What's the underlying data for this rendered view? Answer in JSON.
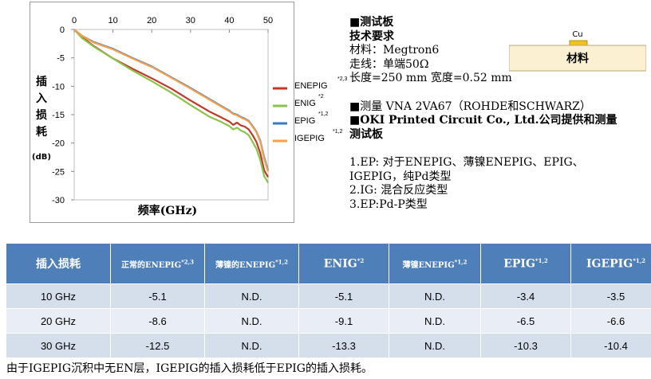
{
  "chart_data": {
    "type": "line",
    "xlabel": "频率(GHz)",
    "ylabel_chars": [
      "插",
      "入",
      "损",
      "耗"
    ],
    "ylabel_unit": "(dB)",
    "xlim": [
      0,
      50
    ],
    "ylim": [
      -30,
      0
    ],
    "x_ticks": [
      "0",
      "10",
      "20",
      "30",
      "40",
      "50"
    ],
    "y_ticks": [
      "0",
      "-5",
      "-10",
      "-15",
      "-20",
      "-25",
      "-30"
    ],
    "series": [
      {
        "name": "ENEPIG",
        "sup": "*2,3",
        "color": "#c0392b",
        "x": [
          0,
          2,
          5,
          10,
          15,
          20,
          25,
          30,
          35,
          38,
          40,
          41,
          42,
          43,
          44,
          45,
          46,
          47,
          48,
          49,
          50
        ],
        "y": [
          0,
          -1.3,
          -2.9,
          -5.1,
          -6.9,
          -8.6,
          -10.4,
          -12.5,
          -14.5,
          -15.5,
          -16.2,
          -16.8,
          -16.4,
          -16.9,
          -17.1,
          -17.6,
          -18.6,
          -19.8,
          -21.8,
          -24.8,
          -26
        ]
      },
      {
        "name": "ENIG",
        "sup": "*2",
        "color": "#8bc34a",
        "x": [
          0,
          2,
          5,
          10,
          15,
          20,
          25,
          30,
          35,
          38,
          40,
          41,
          42,
          43,
          44,
          45,
          46,
          47,
          48,
          49,
          50
        ],
        "y": [
          0,
          -1.5,
          -3,
          -5.1,
          -7.2,
          -9.1,
          -11.1,
          -13.3,
          -15.4,
          -16.3,
          -17,
          -17.6,
          -17.3,
          -17.8,
          -18.1,
          -18.6,
          -19.8,
          -21,
          -23,
          -25.8,
          -27
        ]
      },
      {
        "name": "EPIG",
        "sup": "*1,2",
        "color": "#3a78c2",
        "x": [
          0,
          2,
          5,
          10,
          15,
          20,
          25,
          30,
          35,
          38,
          40,
          41,
          42,
          43,
          44,
          45,
          46,
          47,
          48,
          49,
          50
        ],
        "y": [
          0,
          -1.1,
          -2.2,
          -3.4,
          -5,
          -6.5,
          -8.4,
          -10.3,
          -12.3,
          -13.5,
          -14.3,
          -14.8,
          -15,
          -15.4,
          -15.7,
          -16.1,
          -17,
          -18,
          -19.6,
          -22.5,
          -24.8
        ]
      },
      {
        "name": "IGEPIG",
        "sup": "*1,2",
        "color": "#f5a04a",
        "x": [
          0,
          2,
          5,
          10,
          15,
          20,
          25,
          30,
          35,
          38,
          40,
          41,
          42,
          43,
          44,
          45,
          46,
          47,
          48,
          49,
          50
        ],
        "y": [
          0,
          -1.1,
          -2.3,
          -3.5,
          -5.1,
          -6.6,
          -8.5,
          -10.4,
          -12.4,
          -13.6,
          -14.4,
          -14.9,
          -15.1,
          -15.5,
          -15.8,
          -16.2,
          -17.1,
          -18.1,
          -19.8,
          -22.8,
          -25
        ]
      }
    ]
  },
  "right": {
    "title": "■测试板",
    "spec_title": "技术要求",
    "material": "材料：Megtron6",
    "trace": "走线：单端50Ω",
    "dims": "长度=250 mm   宽度=0.52 mm",
    "measure": "■测量  VNA 2VA67（ROHDE和SCHWARZ）",
    "oki_1": "■OKI Printed Circuit Co., Ltd.公司提供和测量",
    "oki_2": "测试板",
    "note1": "1.EP: 对于ENEPIG、薄镍ENEPIG、EPIG、",
    "note2": "IGEPIG，纯Pd类型",
    "note3": "2.IG: 混合反应类型",
    "note4": "3.EP:Pd-P类型",
    "cu_label": "Cu",
    "material_label": "材料"
  },
  "table": {
    "headers": [
      {
        "text": "插入损耗",
        "sup": ""
      },
      {
        "text": "正常的ENEPIG",
        "sup": "*2,3"
      },
      {
        "text": "薄镍的ENEPIG",
        "sup": "*1,2"
      },
      {
        "text": "ENIG",
        "sup": "*2"
      },
      {
        "text": "薄镍ENEPIG",
        "sup": "*1,2"
      },
      {
        "text": "EPIG",
        "sup": "*1,2"
      },
      {
        "text": "IGEPIG",
        "sup": "*1,2"
      }
    ],
    "rows": [
      [
        "10 GHz",
        "-5.1",
        "N.D.",
        "-5.1",
        "N.D.",
        "-3.4",
        "-3.5"
      ],
      [
        "20 GHz",
        "-8.6",
        "N.D.",
        "-9.1",
        "N.D.",
        "-6.5",
        "-6.6"
      ],
      [
        "30 GHz",
        "-12.5",
        "N.D.",
        "-13.3",
        "N.D.",
        "-10.3",
        "-10.4"
      ]
    ]
  },
  "footer": "由于IGEPIG沉积中无EN层，IGEPIG的插入损耗低于EPIG的插入损耗。"
}
